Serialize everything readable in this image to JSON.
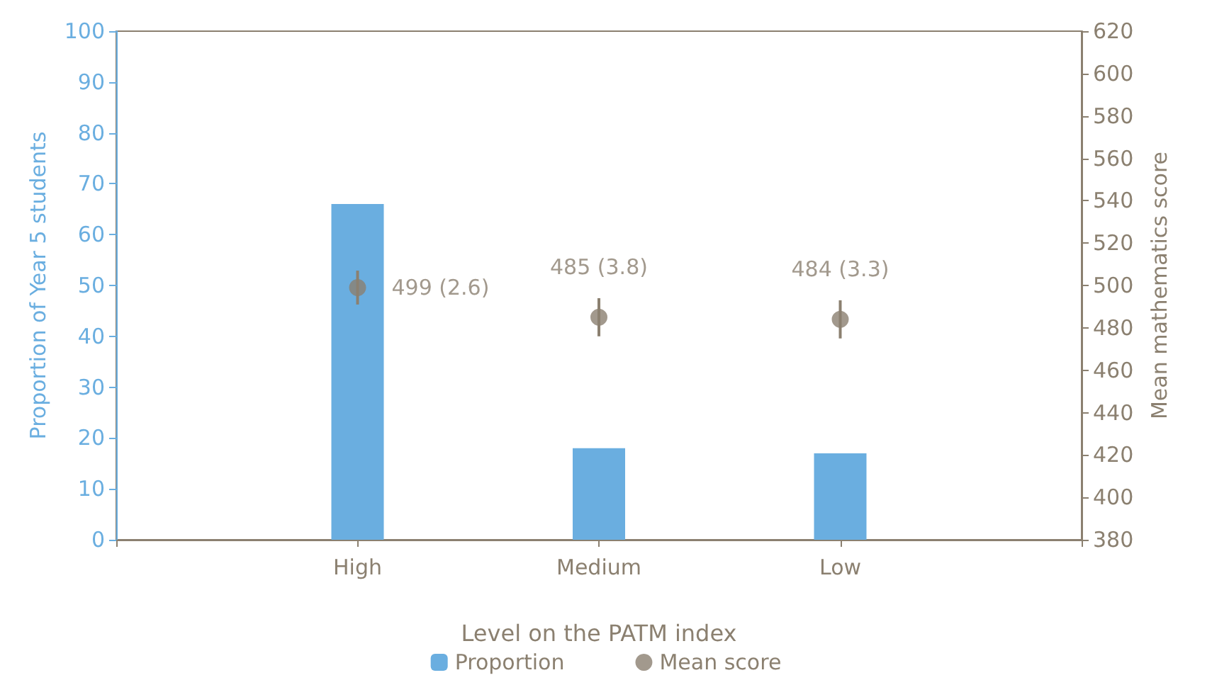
{
  "chart_data": {
    "type": "bar",
    "xlabel": "Level on the PATM index",
    "ylabel": "Proportion of Year 5 students",
    "y2label": "Mean mathematics score",
    "categories": [
      null,
      "High",
      "Medium",
      "Low",
      null
    ],
    "series": [
      {
        "name": "Proportion",
        "color": "#6aaee0",
        "values": [
          null,
          66,
          18,
          17,
          null
        ]
      },
      {
        "name": "Mean score",
        "type": "scatter",
        "axis": "y2",
        "color": "#8b8070",
        "x": [
          "High",
          "Medium",
          "Low"
        ],
        "values": [
          499,
          485,
          484
        ],
        "errors": [
          8,
          9,
          9
        ],
        "value_labels": [
          "499 (2.6)",
          "485 (3.8)",
          "484 (3.3)"
        ]
      }
    ],
    "ylim": [
      0,
      100
    ],
    "yticks": [
      0,
      10,
      20,
      30,
      40,
      50,
      60,
      70,
      80,
      90,
      100
    ],
    "y2lim": [
      380,
      620
    ],
    "y2ticks": [
      380,
      400,
      420,
      440,
      460,
      480,
      500,
      520,
      540,
      560,
      580,
      600,
      620
    ],
    "grid": false,
    "legend": "bottom",
    "marker": "circle"
  }
}
